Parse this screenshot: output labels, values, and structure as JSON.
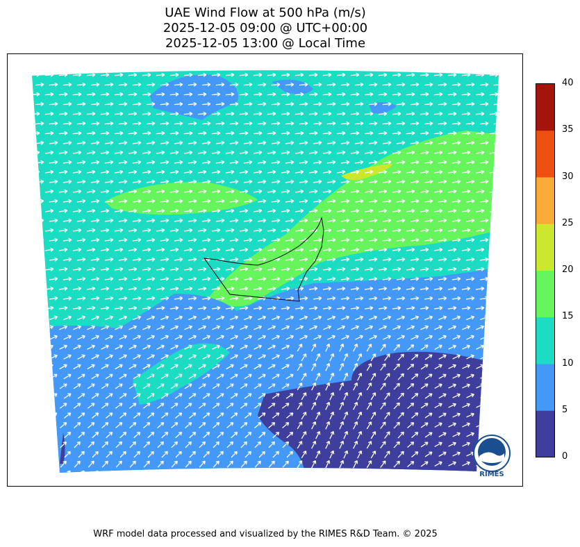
{
  "title": {
    "line1": "UAE Wind Flow at 500 hPa (m/s)",
    "line2": "2025-12-05 09:00 @ UTC+00:00",
    "line3": "2025-12-05 13:00 @ Local Time"
  },
  "colorbar": {
    "ticks": [
      "0",
      "5",
      "10",
      "15",
      "20",
      "25",
      "30",
      "35",
      "40"
    ],
    "bands": [
      {
        "from": 0,
        "to": 5,
        "color": "#3e3f9d"
      },
      {
        "from": 5,
        "to": 10,
        "color": "#4499f8"
      },
      {
        "from": 10,
        "to": 15,
        "color": "#1ddcc4"
      },
      {
        "from": 15,
        "to": 20,
        "color": "#66f55a"
      },
      {
        "from": 20,
        "to": 25,
        "color": "#cbe82e"
      },
      {
        "from": 25,
        "to": 30,
        "color": "#fbab37"
      },
      {
        "from": 30,
        "to": 35,
        "color": "#ee5011"
      },
      {
        "from": 35,
        "to": 40,
        "color": "#a3150b"
      }
    ]
  },
  "map": {
    "arrow_color": "#ffffff",
    "boundary_color": "#000000",
    "dominant_flow": "west-southwest"
  },
  "logo": {
    "name": "RIMES",
    "text": "RIMES"
  },
  "footer": "WRF model data processed and visualized by the RIMES R&D Team. © 2025"
}
